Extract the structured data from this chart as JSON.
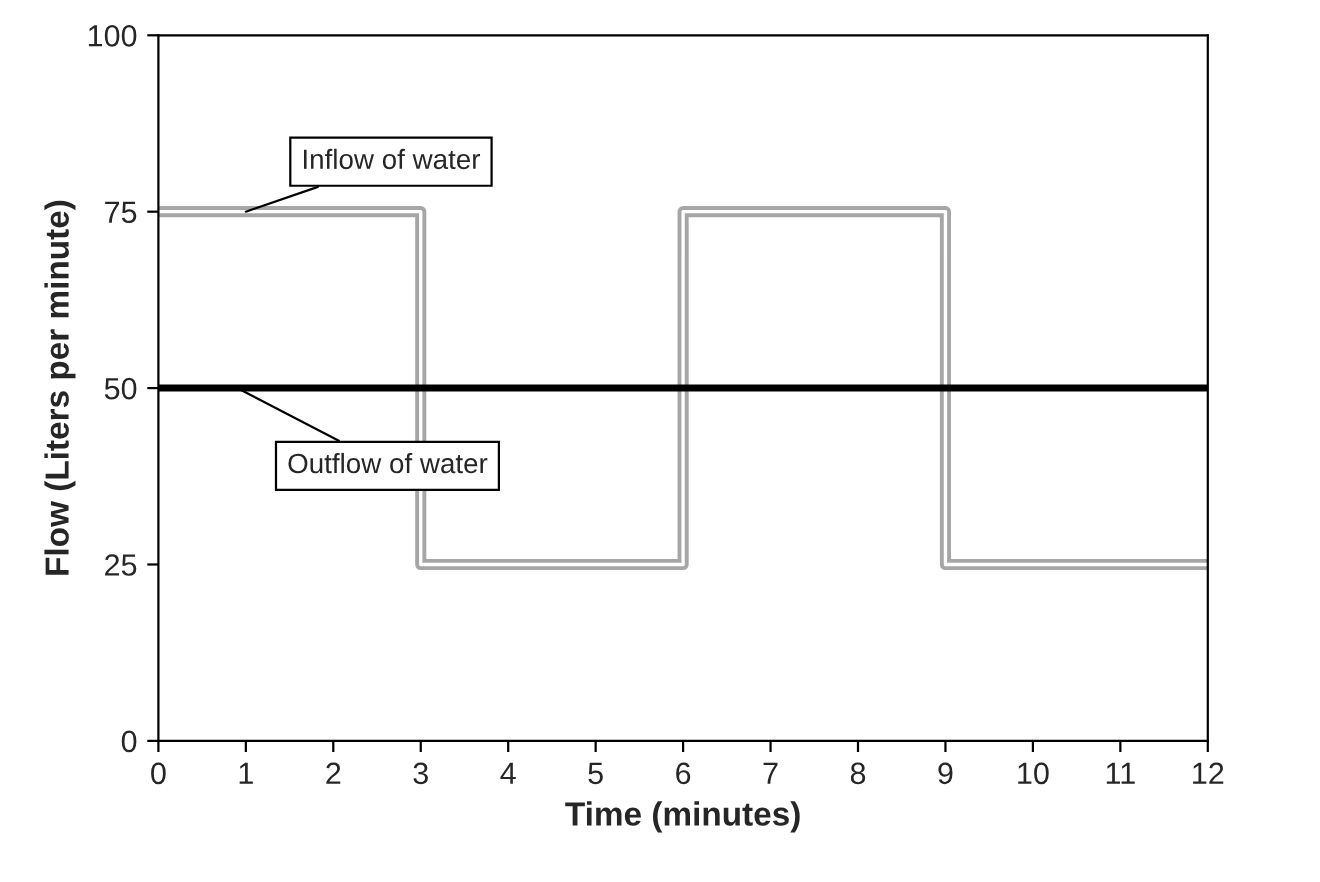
{
  "chart_data": {
    "type": "step",
    "xlabel": "Time (minutes)",
    "ylabel": "Flow (Liters per minute)",
    "series": [
      {
        "color": "#a6a6a6",
        "x": [
          0,
          3,
          6,
          9,
          12
        ],
        "values": [
          75,
          25,
          75,
          25,
          25
        ]
      },
      {
        "type": "line",
        "color": "#000000",
        "x": [
          0,
          12
        ],
        "values": [
          50,
          50
        ]
      }
    ],
    "annotations": [
      {
        "text": "Inflow of water",
        "x": 1,
        "y": 75
      },
      {
        "text": "Outflow of water",
        "x": 0.9,
        "y": 50
      }
    ],
    "xlim": [
      0,
      12
    ],
    "xticks": [
      0,
      1,
      2,
      3,
      4,
      5,
      6,
      7,
      8,
      9,
      10,
      11,
      12
    ],
    "ylim": [
      0,
      100
    ],
    "yticks": [
      0,
      25,
      50,
      75,
      100
    ],
    "grid": false,
    "legend": false
  }
}
